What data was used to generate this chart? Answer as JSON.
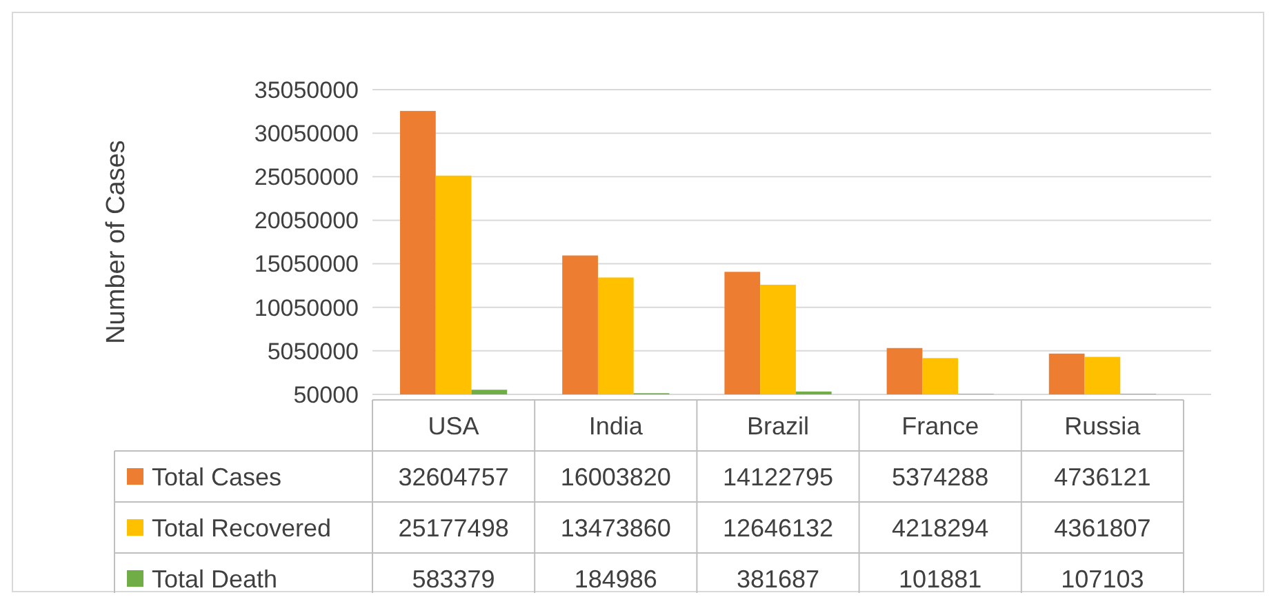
{
  "chart_data": {
    "type": "bar",
    "ylabel": "Number of Cases",
    "categories": [
      "USA",
      "India",
      "Brazil",
      "France",
      "Russia"
    ],
    "series": [
      {
        "name": "Total Cases",
        "color": "#ed7d31",
        "values": [
          32604757,
          16003820,
          14122795,
          5374288,
          4736121
        ]
      },
      {
        "name": "Total Recovered",
        "color": "#ffc000",
        "values": [
          25177498,
          13473860,
          12646132,
          4218294,
          4361807
        ]
      },
      {
        "name": "Total Death",
        "color": "#70ad47",
        "values": [
          583379,
          184986,
          381687,
          101881,
          107103
        ]
      }
    ],
    "ylim": [
      50000,
      35050000
    ],
    "yticks": [
      50000,
      5050000,
      10050000,
      15050000,
      20050000,
      25050000,
      30050000,
      35050000
    ],
    "grid": "y",
    "legend": "bottom",
    "data_labels": true
  }
}
